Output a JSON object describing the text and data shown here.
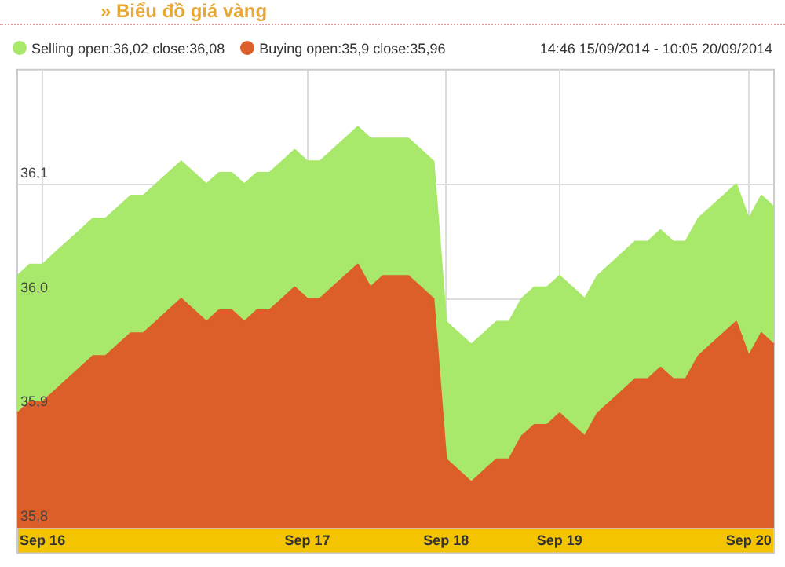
{
  "chart_data": {
    "type": "area",
    "title": "» Biểu đồ giá vàng",
    "annotations": [
      "14:46 15/09/2014 - 10:05 20/09/2014"
    ],
    "categories": [
      null,
      null,
      "Sep 16",
      null,
      null,
      null,
      null,
      null,
      null,
      null,
      null,
      null,
      null,
      null,
      null,
      null,
      null,
      null,
      null,
      null,
      null,
      null,
      null,
      "Sep 17",
      null,
      null,
      null,
      null,
      null,
      null,
      null,
      null,
      null,
      null,
      "Sep 18",
      null,
      null,
      null,
      null,
      null,
      null,
      null,
      null,
      "Sep 19",
      null,
      null,
      null,
      null,
      null,
      null,
      null,
      null,
      null,
      null,
      null,
      null,
      null,
      null,
      "Sep 20",
      null,
      null
    ],
    "series": [
      {
        "name": "Selling open:36,02 close:36,08",
        "color": "#a8e86a",
        "values": [
          36.02,
          36.03,
          36.03,
          36.04,
          36.05,
          36.06,
          36.07,
          36.07,
          36.08,
          36.09,
          36.09,
          36.1,
          36.11,
          36.12,
          36.11,
          36.1,
          36.11,
          36.11,
          36.1,
          36.11,
          36.11,
          36.12,
          36.13,
          36.12,
          36.12,
          36.13,
          36.14,
          36.15,
          36.14,
          36.14,
          36.14,
          36.14,
          36.13,
          36.12,
          35.98,
          35.97,
          35.96,
          35.97,
          35.98,
          35.98,
          36.0,
          36.01,
          36.01,
          36.02,
          36.01,
          36.0,
          36.02,
          36.03,
          36.04,
          36.05,
          36.05,
          36.06,
          36.05,
          36.05,
          36.07,
          36.08,
          36.09,
          36.1,
          36.07,
          36.09,
          36.08
        ]
      },
      {
        "name": "Buying open:35,9 close:35,96",
        "color": "#dc5e28",
        "values": [
          35.9,
          35.91,
          35.91,
          35.92,
          35.93,
          35.94,
          35.95,
          35.95,
          35.96,
          35.97,
          35.97,
          35.98,
          35.99,
          36.0,
          35.99,
          35.98,
          35.99,
          35.99,
          35.98,
          35.99,
          35.99,
          36.0,
          36.01,
          36.0,
          36.0,
          36.01,
          36.02,
          36.03,
          36.01,
          36.02,
          36.02,
          36.02,
          36.01,
          36.0,
          35.86,
          35.85,
          35.84,
          35.85,
          35.86,
          35.86,
          35.88,
          35.89,
          35.89,
          35.9,
          35.89,
          35.88,
          35.9,
          35.91,
          35.92,
          35.93,
          35.93,
          35.94,
          35.93,
          35.93,
          35.95,
          35.96,
          35.97,
          35.98,
          35.95,
          35.97,
          35.96
        ]
      }
    ],
    "ylim": [
      35.8,
      36.2
    ],
    "yticks": [
      {
        "value": 35.8,
        "label": "35,8"
      },
      {
        "value": 35.9,
        "label": "35,9"
      },
      {
        "value": 36.0,
        "label": "36,0"
      },
      {
        "value": 36.1,
        "label": "36,1"
      }
    ],
    "grid": true,
    "legend": "top left",
    "marker": "none"
  }
}
